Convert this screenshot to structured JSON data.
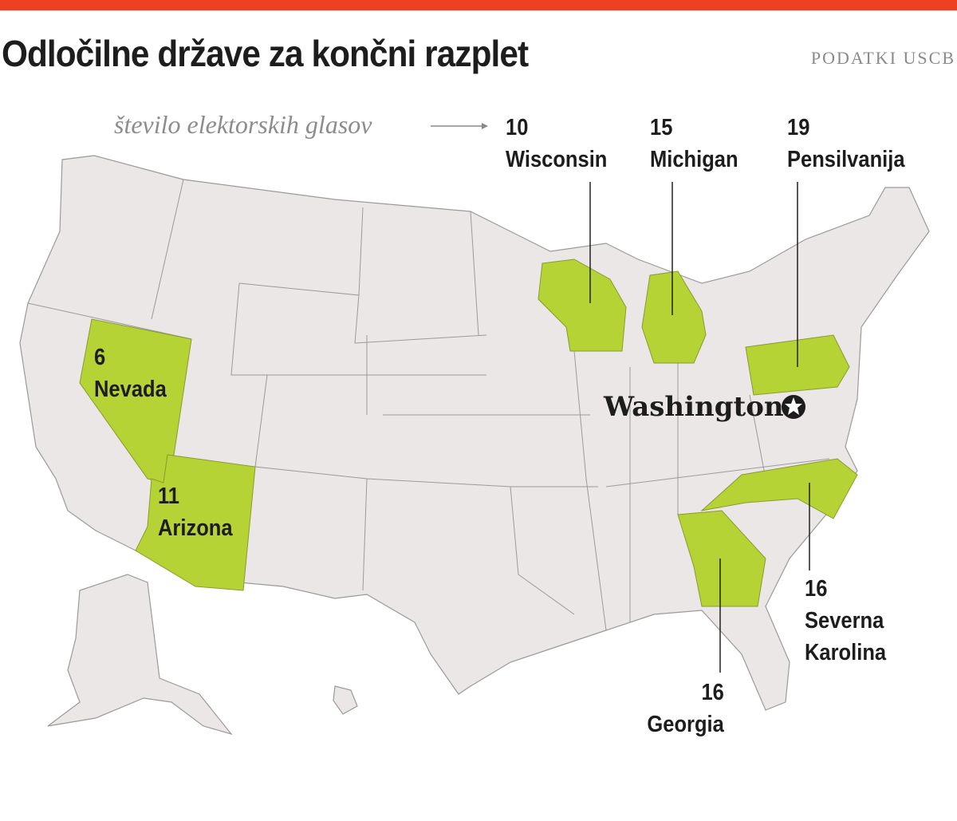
{
  "title": "Odločilne države za končni razplet",
  "source": "PODATKI USCB",
  "legend": "število elektorskih glasov",
  "colors": {
    "accent_bar": "#ee4124",
    "swing_state": "#b5d334",
    "other_state": "#ebe7e6",
    "border": "#9a9a9a"
  },
  "capital": {
    "label": "Washington",
    "icon": "star-in-circle-icon"
  },
  "states": [
    {
      "name": "Wisconsin",
      "votes": "10"
    },
    {
      "name": "Michigan",
      "votes": "15"
    },
    {
      "name": "Pensilvanija",
      "votes": "19"
    },
    {
      "name": "Nevada",
      "votes": "6"
    },
    {
      "name": "Arizona",
      "votes": "11"
    },
    {
      "name": "Severna Karolina",
      "votes": "16"
    },
    {
      "name": "Georgia",
      "votes": "16"
    }
  ]
}
